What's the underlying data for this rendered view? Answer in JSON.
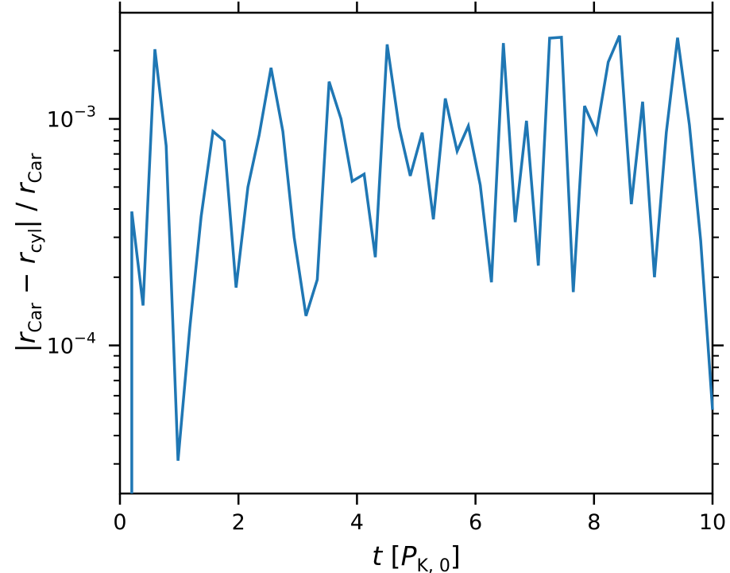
{
  "chart_data": {
    "type": "line",
    "x_axis": {
      "label_var": "t",
      "label_unit_main": "P",
      "label_unit_sub": "K, 0",
      "lim": [
        0,
        10
      ],
      "ticks": [
        0,
        2,
        4,
        6,
        8,
        10
      ],
      "tick_labels": [
        "0",
        "2",
        "4",
        "6",
        "8",
        "10"
      ],
      "scale": "linear"
    },
    "y_axis": {
      "label_r": "r",
      "label_sub_car": "Car",
      "label_sub_cyl": "cyl",
      "label_minus": "−",
      "label_slash": "/",
      "lim": [
        2.22e-05,
        0.00294
      ],
      "scale": "log",
      "major_ticks": [
        {
          "value": 0.001,
          "base": "10",
          "exp": "−3"
        },
        {
          "value": 0.0001,
          "base": "10",
          "exp": "−4"
        }
      ],
      "minor_ticks": [
        3e-05,
        4e-05,
        5e-05,
        6e-05,
        7e-05,
        8e-05,
        9e-05,
        0.0002,
        0.0003,
        0.0004,
        0.0005,
        0.0006,
        0.0007,
        0.0008,
        0.0009,
        0.002
      ]
    },
    "grid": false,
    "series": [
      {
        "color": "#1f77b4",
        "x": [
          0.2,
          0.2,
          0.39,
          0.59,
          0.78,
          0.98,
          1.18,
          1.37,
          1.57,
          1.76,
          1.96,
          2.16,
          2.35,
          2.55,
          2.75,
          2.94,
          3.14,
          3.33,
          3.53,
          3.73,
          3.92,
          4.12,
          4.31,
          4.51,
          4.71,
          4.9,
          5.1,
          5.29,
          5.49,
          5.69,
          5.88,
          6.08,
          6.27,
          6.47,
          6.67,
          6.86,
          7.06,
          7.25,
          7.45,
          7.65,
          7.84,
          8.04,
          8.24,
          8.43,
          8.63,
          8.82,
          9.02,
          9.22,
          9.41,
          9.61,
          9.8,
          10.0
        ],
        "y": [
          2.22e-05,
          0.00039,
          0.00015,
          0.00203,
          0.00076,
          3.1e-05,
          0.00012,
          0.00037,
          0.00088,
          0.0008,
          0.00018,
          0.0005,
          0.00085,
          0.00168,
          0.00088,
          0.0003,
          0.000135,
          0.000195,
          0.00146,
          0.001,
          0.00053,
          0.00057,
          0.000245,
          0.00213,
          0.00092,
          0.00056,
          0.00087,
          0.00036,
          0.00123,
          0.00072,
          0.00093,
          0.00051,
          0.00019,
          0.00216,
          0.00035,
          0.00098,
          0.000225,
          0.00227,
          0.00229,
          0.000172,
          0.00114,
          0.00087,
          0.00178,
          0.00233,
          0.00042,
          0.00119,
          0.0002,
          0.00087,
          0.00228,
          0.00094,
          0.00029,
          5.2e-05
        ]
      }
    ]
  }
}
